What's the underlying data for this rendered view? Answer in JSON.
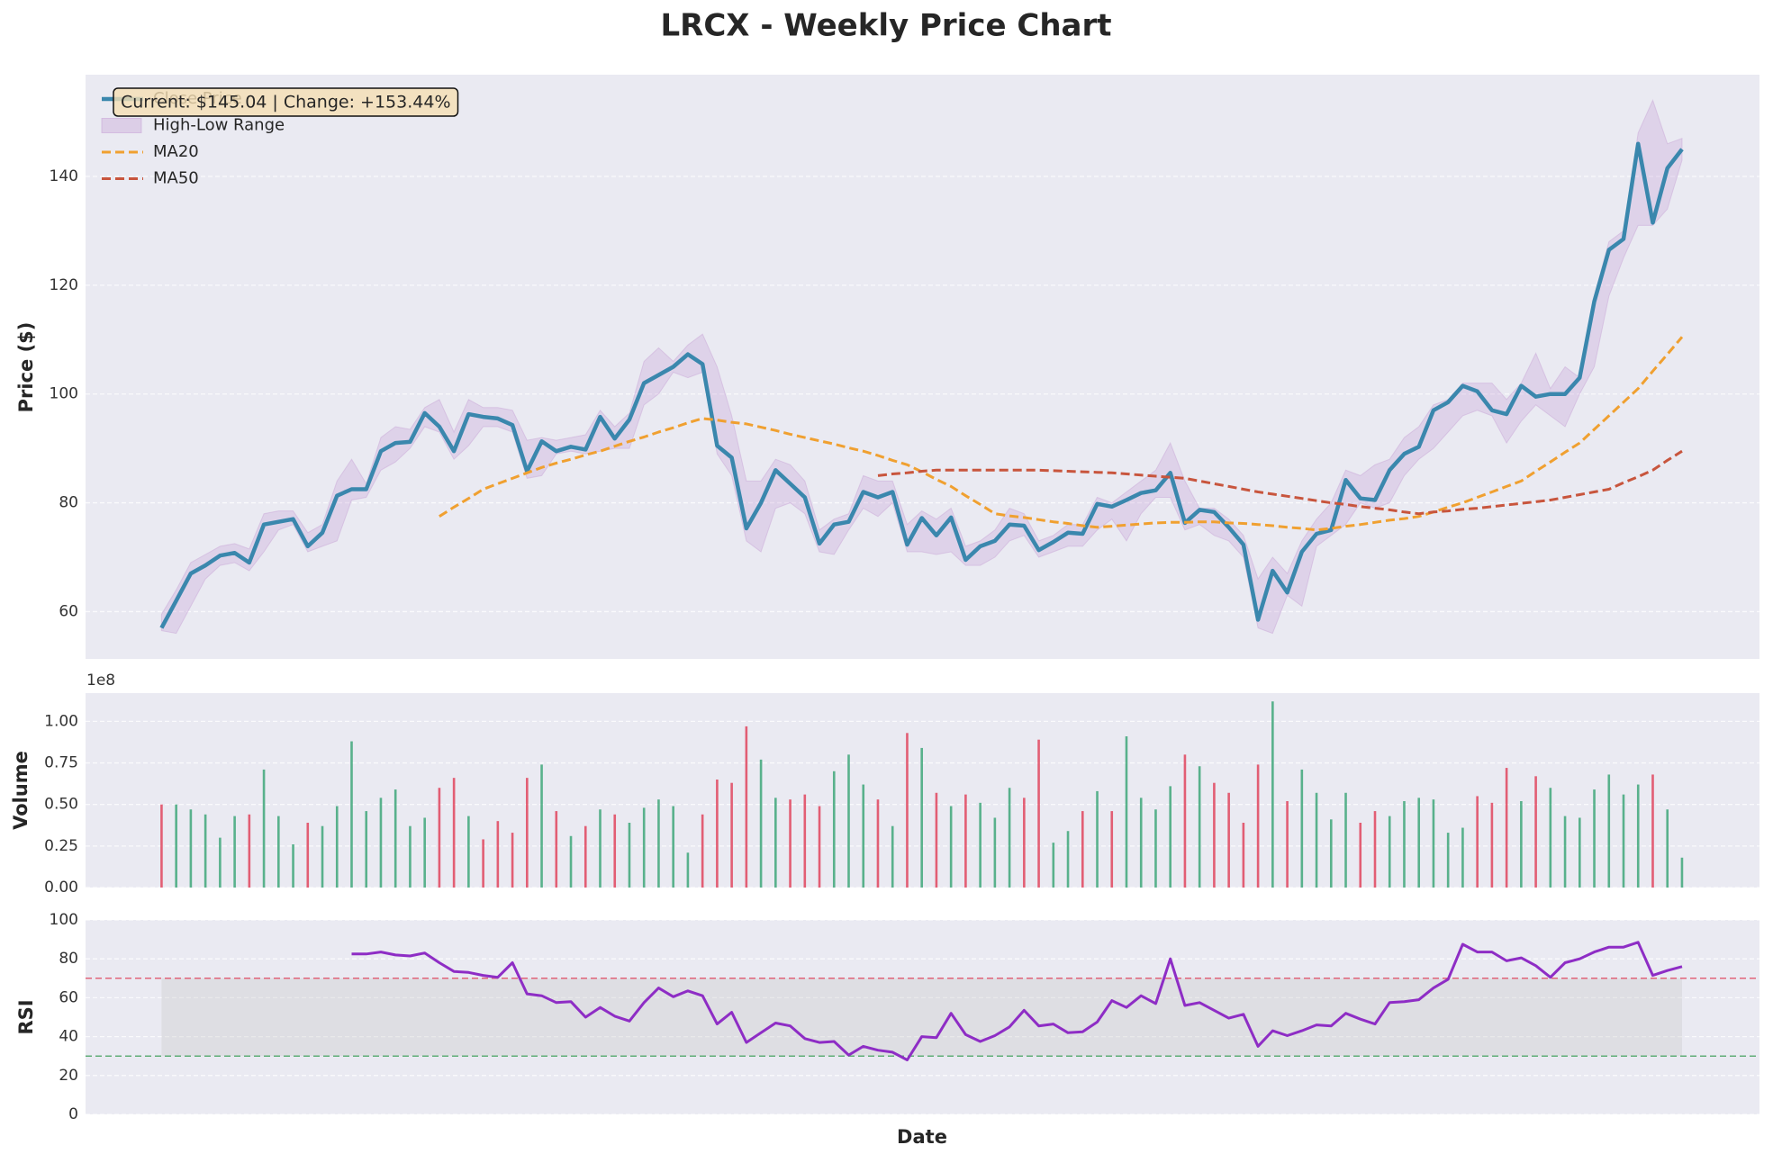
{
  "chart_data": [
    {
      "type": "line",
      "title": "LRCX - Weekly Price Chart",
      "y_label": "Price ($)",
      "xlim": [
        -5.2,
        109.3
      ],
      "ylim": [
        51.3,
        158.7
      ],
      "yticks": [
        60,
        80,
        100,
        120,
        140
      ],
      "grid": true,
      "legend": "upper left",
      "annotation": "Current: $145.04 | Change: +153.44%",
      "range": {
        "name": "High-Low Range",
        "color": "#c39bd3",
        "high": [
          59.5,
          64,
          69,
          70.5,
          72,
          72.5,
          71.5,
          78,
          78.5,
          78.5,
          74.5,
          76,
          84,
          88,
          83.5,
          92,
          94,
          93.5,
          97.5,
          99,
          93,
          99,
          97.5,
          97.5,
          97,
          91.5,
          92,
          91.5,
          92,
          92.5,
          97,
          94,
          96.5,
          106,
          108.5,
          106,
          109,
          111,
          105,
          96,
          84,
          84,
          88,
          87,
          84,
          75,
          77,
          78,
          85,
          84,
          84,
          76,
          78.5,
          77,
          79,
          72,
          73,
          75,
          79,
          78,
          73,
          74,
          76,
          76,
          81,
          80,
          82,
          84,
          86,
          91,
          84,
          79,
          79,
          77,
          74,
          66,
          70,
          67,
          73,
          77,
          80,
          86,
          85,
          87,
          88,
          92,
          94,
          98,
          99,
          102,
          102,
          102,
          99,
          102,
          107.5,
          101,
          105,
          103,
          118,
          128,
          130,
          148,
          154,
          146,
          147
        ],
        "low": [
          56.5,
          56,
          61,
          66,
          68.5,
          69,
          67.5,
          71,
          75,
          76,
          71,
          72,
          73,
          80.5,
          81,
          86,
          87.5,
          90,
          94,
          93,
          88,
          90.5,
          94,
          94,
          93,
          84.5,
          85,
          89,
          89.5,
          89,
          89.5,
          90,
          90,
          98,
          100,
          104,
          103,
          104,
          89,
          85,
          73,
          71,
          79,
          80,
          78,
          71,
          70.5,
          75,
          79,
          77.5,
          80,
          71,
          71,
          70.5,
          71,
          68.5,
          68.5,
          70,
          73,
          74,
          70,
          71,
          72,
          72,
          75,
          77,
          73,
          78,
          81,
          81,
          75,
          76,
          74,
          73,
          70,
          57,
          56,
          63,
          61,
          72,
          74,
          76,
          80,
          79,
          80,
          85,
          88,
          90,
          93,
          96,
          97,
          96,
          91,
          95,
          98,
          96,
          94,
          100,
          105,
          118,
          125,
          131,
          131,
          134,
          143
        ]
      },
      "series": [
        {
          "name": "Close Price",
          "color": "#3a87ad",
          "dashed": false,
          "values": [
            57,
            62,
            67,
            68.5,
            70.3,
            70.8,
            69,
            76,
            76.5,
            77,
            72,
            74.5,
            81.3,
            82.5,
            82.5,
            89.5,
            91,
            91.2,
            96.5,
            94,
            89.5,
            96.3,
            95.8,
            95.5,
            94.3,
            85.8,
            91.3,
            89.5,
            90.3,
            89.8,
            95.8,
            91.8,
            95.3,
            102,
            103.5,
            105,
            107.3,
            105.5,
            90.5,
            88.3,
            75.3,
            80,
            86,
            83.5,
            81,
            72.5,
            76,
            76.5,
            82,
            81,
            82,
            72.3,
            77.2,
            74,
            77.3,
            69.5,
            72,
            73,
            76,
            75.8,
            71.3,
            72.8,
            74.5,
            74.3,
            79.8,
            79.3,
            80.5,
            81.8,
            82.3,
            85.5,
            76.3,
            78.7,
            78.3,
            75.5,
            72.3,
            58.5,
            67.5,
            63.5,
            71,
            74.3,
            75,
            84.2,
            80.8,
            80.5,
            86,
            89,
            90.3,
            97,
            98.5,
            101.5,
            100.5,
            97,
            96.3,
            101.5,
            99.5,
            100,
            100,
            103,
            117,
            126.5,
            128.5,
            146,
            131.5,
            141.5,
            145
          ]
        },
        {
          "name": "MA20",
          "color": "#f0a030",
          "dashed": true,
          "values": [
            null,
            null,
            null,
            null,
            null,
            null,
            null,
            null,
            null,
            null,
            null,
            null,
            null,
            null,
            null,
            null,
            null,
            null,
            null,
            77.5,
            79.2,
            80.8,
            82.5,
            83.5,
            84.5,
            85.5,
            86.5,
            87.3,
            88,
            88.8,
            89.5,
            90.4,
            91.3,
            92.1,
            93,
            93.8,
            94.7,
            95.5,
            95.2,
            94.8,
            94.5,
            93.9,
            93.3,
            92.6,
            92,
            91.4,
            90.8,
            90.1,
            89.5,
            88.7,
            87.8,
            87,
            85.7,
            84.3,
            83,
            81.3,
            79.7,
            78,
            77.6,
            77.3,
            76.9,
            76.5,
            76.2,
            75.8,
            75.5,
            75.7,
            75.9,
            76.1,
            76.3,
            76.4,
            76.4,
            76.5,
            76.5,
            76.3,
            76.2,
            76,
            75.8,
            75.5,
            75.3,
            75,
            75.3,
            75.7,
            76,
            76.4,
            76.8,
            77.1,
            77.5,
            78.3,
            79.2,
            80,
            81,
            82,
            83,
            84,
            85.8,
            87.5,
            89.3,
            91,
            93.5,
            96,
            98.5,
            101,
            104.2,
            107.3,
            110.5
          ]
        },
        {
          "name": "MA50",
          "color": "#c8553d",
          "dashed": true,
          "values": [
            null,
            null,
            null,
            null,
            null,
            null,
            null,
            null,
            null,
            null,
            null,
            null,
            null,
            null,
            null,
            null,
            null,
            null,
            null,
            null,
            null,
            null,
            null,
            null,
            null,
            null,
            null,
            null,
            null,
            null,
            null,
            null,
            null,
            null,
            null,
            null,
            null,
            null,
            null,
            null,
            null,
            null,
            null,
            null,
            null,
            null,
            null,
            null,
            null,
            85,
            85.3,
            85.5,
            85.8,
            86,
            86,
            86,
            86,
            86,
            86,
            86,
            86,
            85.9,
            85.8,
            85.7,
            85.6,
            85.5,
            85.3,
            85.1,
            84.9,
            84.7,
            84.5,
            84,
            83.5,
            83,
            82.5,
            82,
            81.6,
            81.2,
            80.8,
            80.4,
            80,
            79.7,
            79.3,
            79,
            78.7,
            78.3,
            78,
            78.3,
            78.5,
            78.8,
            79,
            79.3,
            79.6,
            79.9,
            80.2,
            80.5,
            81,
            81.5,
            82,
            82.5,
            83.7,
            84.8,
            86,
            87.8,
            89.5
          ]
        }
      ]
    },
    {
      "type": "bar",
      "y_label": "Volume",
      "y_offset_label": "1e8",
      "xlim": [
        -5.2,
        109.3
      ],
      "ylim": [
        0,
        1.17
      ],
      "yticks": [
        {
          "value": 0,
          "label": "0.00"
        },
        0.25,
        {
          "value": 0.5,
          "label": "0.50"
        },
        0.75,
        {
          "value": 1,
          "label": "1.00"
        }
      ],
      "grid": true,
      "up_color": "#3fa77a",
      "down_color": "#e0455e",
      "values": [
        0.5,
        0.5,
        0.47,
        0.44,
        0.3,
        0.43,
        0.44,
        0.71,
        0.43,
        0.26,
        0.39,
        0.37,
        0.49,
        0.88,
        0.46,
        0.54,
        0.59,
        0.37,
        0.42,
        0.6,
        0.66,
        0.43,
        0.29,
        0.4,
        0.33,
        0.66,
        0.74,
        0.46,
        0.31,
        0.37,
        0.47,
        0.44,
        0.39,
        0.48,
        0.53,
        0.49,
        0.21,
        0.44,
        0.65,
        0.63,
        0.97,
        0.77,
        0.54,
        0.53,
        0.56,
        0.49,
        0.7,
        0.8,
        0.62,
        0.53,
        0.37,
        0.93,
        0.84,
        0.57,
        0.49,
        0.56,
        0.51,
        0.42,
        0.6,
        0.54,
        0.89,
        0.27,
        0.34,
        0.46,
        0.58,
        0.46,
        0.91,
        0.54,
        0.47,
        0.61,
        0.8,
        0.73,
        0.63,
        0.57,
        0.39,
        0.74,
        1.12,
        0.52,
        0.71,
        0.57,
        0.41,
        0.57,
        0.39,
        0.46,
        0.43,
        0.52,
        0.54,
        0.53,
        0.33,
        0.36,
        0.55,
        0.51,
        0.72,
        0.52,
        0.67,
        0.6,
        0.43,
        0.42,
        0.59,
        0.68,
        0.56,
        0.62,
        0.68,
        0.47,
        0.18
      ]
    },
    {
      "type": "line",
      "y_label": "RSI",
      "x_label": "Date",
      "xlim": [
        -5.2,
        109.3
      ],
      "ylim": [
        0,
        100
      ],
      "yticks": [
        0,
        20,
        40,
        60,
        80,
        100
      ],
      "grid": true,
      "color": "#8e2dc5",
      "overbought": 70,
      "oversold": 30,
      "overbought_color": "#e0455e",
      "oversold_color": "#3fa05a",
      "values": [
        null,
        null,
        null,
        null,
        null,
        null,
        null,
        null,
        null,
        null,
        null,
        null,
        null,
        82.5,
        82.5,
        83.5,
        82,
        81.5,
        83,
        78,
        73.5,
        73,
        71.5,
        70.5,
        78,
        62,
        61,
        57.5,
        58,
        50,
        55,
        50.5,
        48,
        57.5,
        65,
        60.5,
        63.5,
        61,
        46.5,
        52.5,
        37,
        42,
        47,
        45.5,
        39,
        37,
        37.5,
        30.5,
        35,
        33,
        32,
        28,
        40,
        39.5,
        52,
        41,
        37.5,
        40.5,
        45,
        53.5,
        45.5,
        46.5,
        42,
        42.5,
        47.5,
        58.5,
        55,
        61,
        57,
        80,
        56,
        57.5,
        53.5,
        49.5,
        51.5,
        35,
        43,
        40.5,
        43,
        46,
        45.5,
        52,
        49,
        46.5,
        57.5,
        58,
        59,
        65,
        69.5,
        87.5,
        83.5,
        83.5,
        79,
        80.5,
        76.5,
        70.5,
        78,
        80,
        83.5,
        86,
        86,
        88.5,
        71.5,
        74,
        76
      ]
    }
  ]
}
